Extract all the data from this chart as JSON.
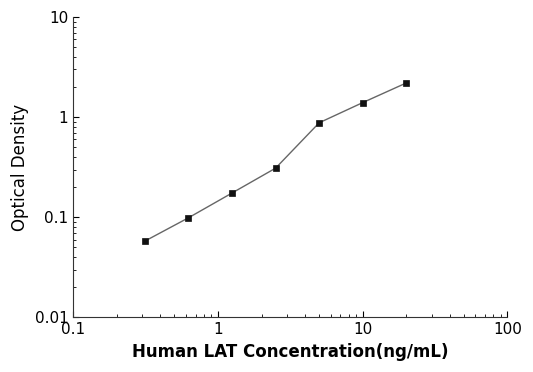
{
  "x_values": [
    0.313,
    0.625,
    1.25,
    2.5,
    5.0,
    10.0,
    20.0
  ],
  "y_values": [
    0.058,
    0.099,
    0.175,
    0.31,
    0.88,
    1.4,
    2.2
  ],
  "xlabel": "Human LAT Concentration(ng/mL)",
  "ylabel": "Optical Density",
  "xlim": [
    0.1,
    100
  ],
  "ylim": [
    0.01,
    10
  ],
  "line_color": "#666666",
  "marker": "s",
  "marker_color": "#111111",
  "marker_size": 5,
  "linewidth": 1.0,
  "x_ticks": [
    0.1,
    1,
    10,
    100
  ],
  "x_tick_labels": [
    "0.1",
    "1",
    "10",
    "100"
  ],
  "y_ticks": [
    0.01,
    0.1,
    1,
    10
  ],
  "y_tick_labels": [
    "0.01",
    "0.1",
    "1",
    "10"
  ],
  "background_color": "#ffffff",
  "xlabel_fontsize": 12,
  "ylabel_fontsize": 12,
  "tick_fontsize": 11,
  "xlabel_fontweight": "bold",
  "ylabel_fontweight": "normal"
}
